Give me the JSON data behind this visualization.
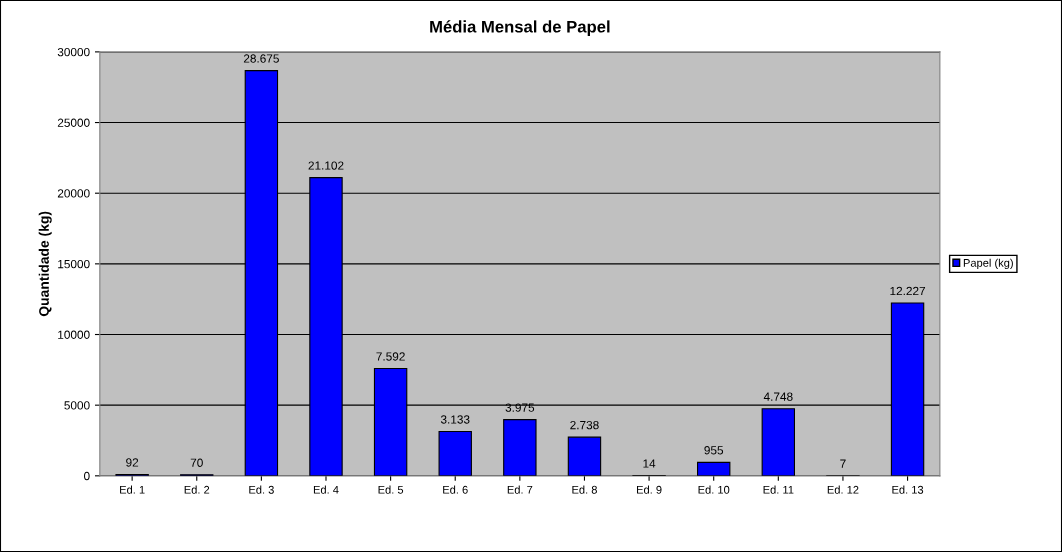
{
  "chart_data": {
    "type": "bar",
    "title": "Média Mensal de Papel",
    "ylabel": "Quantidade (kg)",
    "categories": [
      "Ed. 1",
      "Ed. 2",
      "Ed. 3",
      "Ed. 4",
      "Ed. 5",
      "Ed. 6",
      "Ed. 7",
      "Ed. 8",
      "Ed. 9",
      "Ed. 10",
      "Ed. 11",
      "Ed. 12",
      "Ed. 13"
    ],
    "series": [
      {
        "name": "Papel (kg)",
        "color": "#0000ff",
        "values": [
          92,
          70,
          28675,
          21102,
          7592,
          3133,
          3975,
          2738,
          14,
          955,
          4748,
          7,
          12227
        ],
        "value_labels": [
          "92",
          "70",
          "28.675",
          "21.102",
          "7.592",
          "3.133",
          "3.975",
          "2.738",
          "14",
          "955",
          "4.748",
          "7",
          "12.227"
        ]
      }
    ],
    "ylim": [
      0,
      30000
    ],
    "yticks": [
      0,
      5000,
      10000,
      15000,
      20000,
      25000,
      30000
    ],
    "grid": "y",
    "legend": "right"
  }
}
